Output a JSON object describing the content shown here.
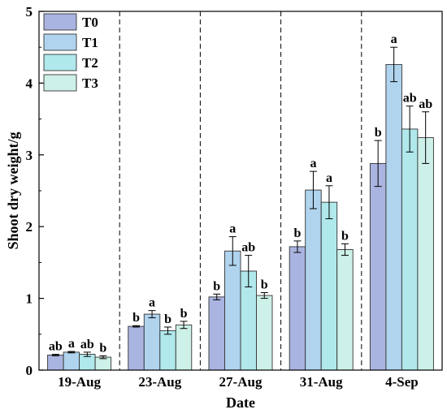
{
  "chart_data": {
    "type": "bar",
    "xlabel": "Date",
    "ylabel": "Shoot dry weight/g",
    "ylim": [
      0,
      5
    ],
    "yticks": [
      0,
      1,
      2,
      3,
      4,
      5
    ],
    "categories": [
      "19-Aug",
      "23-Aug",
      "27-Aug",
      "31-Aug",
      "4-Sep"
    ],
    "legend_position": "top-left",
    "grid": false,
    "separators": "dashed vertical lines between date groups",
    "series": [
      {
        "name": "T0",
        "color": "#aab4e0",
        "values": [
          0.21,
          0.61,
          1.02,
          1.72,
          2.88
        ],
        "errors": [
          0.01,
          0.01,
          0.04,
          0.08,
          0.32
        ],
        "labels": [
          "ab",
          "b",
          "b",
          "b",
          "b"
        ]
      },
      {
        "name": "T1",
        "color": "#b0d4ee",
        "values": [
          0.25,
          0.78,
          1.66,
          2.51,
          4.26
        ],
        "errors": [
          0.01,
          0.05,
          0.2,
          0.26,
          0.24
        ],
        "labels": [
          "a",
          "a",
          "a",
          "a",
          "a"
        ]
      },
      {
        "name": "T2",
        "color": "#b0e8ec",
        "values": [
          0.22,
          0.55,
          1.38,
          2.34,
          3.36
        ],
        "errors": [
          0.03,
          0.05,
          0.22,
          0.23,
          0.32
        ],
        "labels": [
          "ab",
          "b",
          "ab",
          "a",
          "ab"
        ]
      },
      {
        "name": "T3",
        "color": "#cdf0e8",
        "values": [
          0.18,
          0.63,
          1.04,
          1.68,
          3.24
        ],
        "errors": [
          0.02,
          0.05,
          0.04,
          0.08,
          0.36
        ],
        "labels": [
          "b",
          "b",
          "b",
          "b",
          "ab"
        ]
      }
    ]
  }
}
